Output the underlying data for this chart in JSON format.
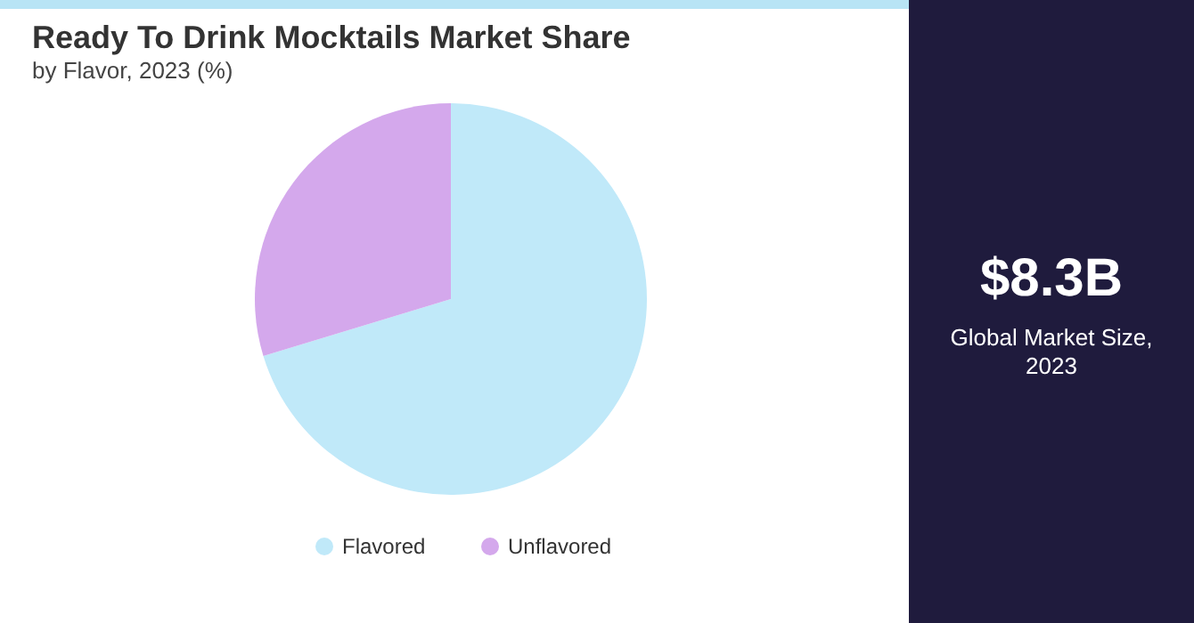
{
  "chart_data": [
    {
      "type": "pie",
      "title": "Ready To Drink Mocktails Market Share",
      "subtitle": "by Flavor, 2023 (%)",
      "categories": [
        "Flavored",
        "Unflavored"
      ],
      "values": [
        70.3,
        29.7
      ],
      "colors": [
        "#c0e9f9",
        "#d4a8ec"
      ],
      "legend": "bottom"
    },
    {
      "type": "other",
      "title": "$8.3B",
      "subtitle": "Global Market Size, 2023"
    }
  ]
}
